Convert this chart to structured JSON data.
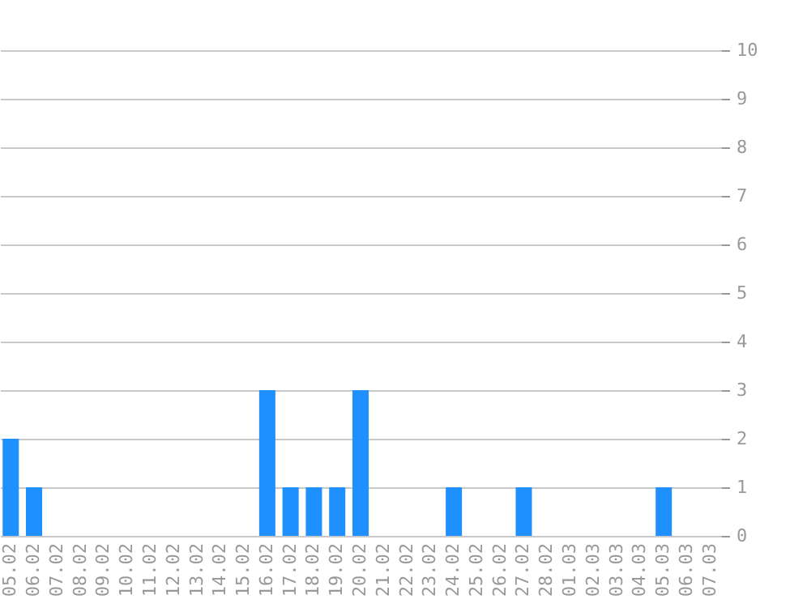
{
  "chart_data": {
    "type": "bar",
    "categories": [
      "05.02",
      "06.02",
      "07.02",
      "08.02",
      "09.02",
      "10.02",
      "11.02",
      "12.02",
      "13.02",
      "14.02",
      "15.02",
      "16.02",
      "17.02",
      "18.02",
      "19.02",
      "20.02",
      "21.02",
      "22.02",
      "23.02",
      "24.02",
      "25.02",
      "26.02",
      "27.02",
      "28.02",
      "01.03",
      "02.03",
      "03.03",
      "04.03",
      "05.03",
      "06.03",
      "07.03"
    ],
    "values": [
      2,
      1,
      0,
      0,
      0,
      0,
      0,
      0,
      0,
      0,
      0,
      3,
      1,
      1,
      1,
      3,
      0,
      0,
      0,
      1,
      0,
      0,
      1,
      0,
      0,
      0,
      0,
      0,
      1,
      0,
      0
    ],
    "color": "#1e90ff",
    "ylim": [
      0,
      10
    ],
    "yticks": [
      0,
      1,
      2,
      3,
      4,
      5,
      6,
      7,
      8,
      9,
      10
    ],
    "grid": "y"
  }
}
